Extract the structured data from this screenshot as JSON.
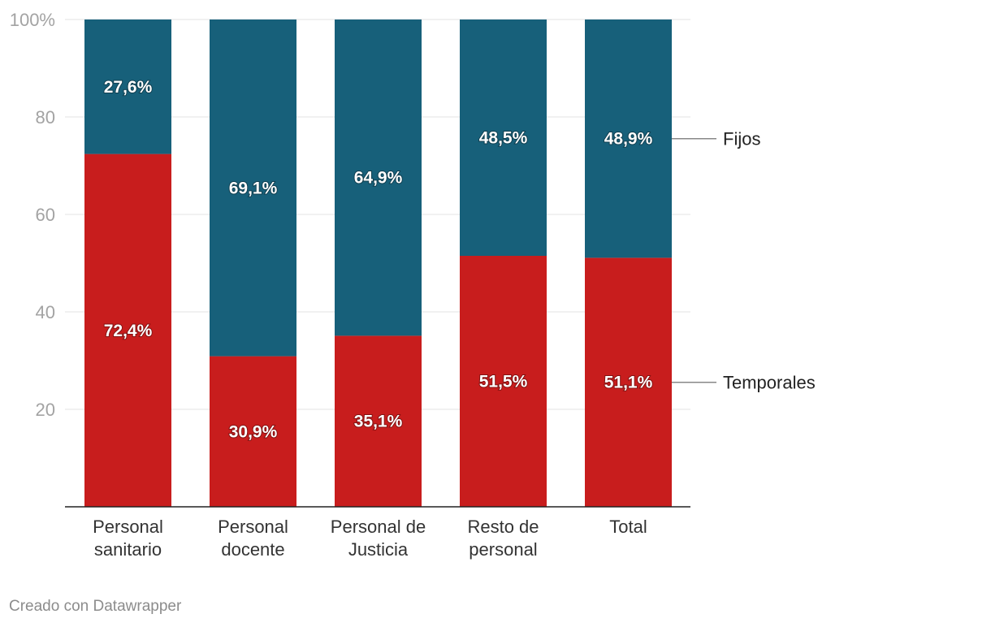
{
  "chart_data": {
    "type": "bar",
    "stacked": true,
    "categories": [
      [
        "Personal",
        "sanitario"
      ],
      [
        "Personal",
        "docente"
      ],
      [
        "Personal de",
        "Justicia"
      ],
      [
        "Resto de",
        "personal"
      ],
      [
        "Total"
      ]
    ],
    "series": [
      {
        "name": "Temporales",
        "color": "#c81d1d",
        "values": [
          72.4,
          30.9,
          35.1,
          51.5,
          51.1
        ],
        "labels": [
          "72,4%",
          "30,9%",
          "35,1%",
          "51,5%",
          "51,1%"
        ]
      },
      {
        "name": "Fijos",
        "color": "#17607a",
        "values": [
          27.6,
          69.1,
          64.9,
          48.5,
          48.9
        ],
        "labels": [
          "27,6%",
          "69,1%",
          "64,9%",
          "48,5%",
          "48,9%"
        ]
      }
    ],
    "ylim": [
      0,
      100
    ],
    "yticks": [
      20,
      40,
      60,
      80,
      100
    ],
    "ytick_labels": [
      "20",
      "40",
      "60",
      "80",
      "100%"
    ],
    "grid": true,
    "legend": "right, inline labels"
  },
  "footer": {
    "credit": "Creado con Datawrapper"
  }
}
